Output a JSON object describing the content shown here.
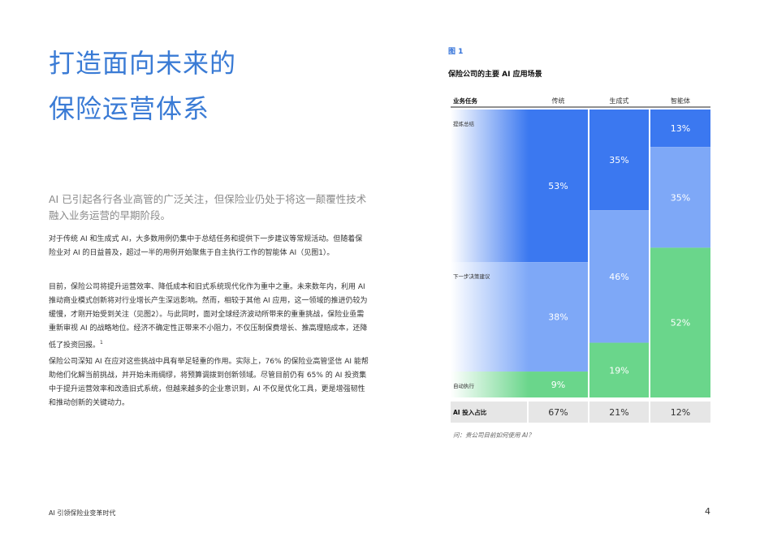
{
  "page": {
    "title_line1": "打造面向未来的",
    "title_line2": "保险运营体系",
    "lead": "AI 已引起各行各业高管的广泛关注，但保险业仍处于将这一颠覆性技术融入业务运营的早期阶段。",
    "para1": "对于传统 AI 和生成式 AI，大多数用例仍集中于总结任务和提供下一步建议等常规活动。但随着保险业对 AI 的日益普及，超过一半的用例开始聚焦于自主执行工作的智能体 AI（见图1）。",
    "para2": "目前，保险公司将提升运营效率、降低成本和旧式系统现代化作为重中之重。未来数年内，利用 AI 推动商业模式创新将对行业增长产生深远影响。然而，相较于其他 AI 应用，这一领域的推进仍较为缓慢，才刚开始受到关注（见图2）。与此同时，面对全球经济波动所带来的重重挑战，保险业亟需重新审视 AI 的战略地位。经济不确定性正带来不小阻力，不仅压制保费增长、推高理赔成本，还降低了投资回报。",
    "para2_sup": "1",
    "para3": "保险公司深知 AI 在应对这些挑战中具有举足轻重的作用。实际上，76% 的保险业高管坚信 AI 能帮助他们化解当前挑战，并开始未雨绸缪，将预算调拨到创新领域。尽管目前仍有 65% 的 AI 投资集中于提升运营效率和改造旧式系统，但越来越多的企业意识到，AI 不仅是优化工具，更是增强韧性和推动创新的关键动力。",
    "footer_left": "AI 引领保险业变革时代",
    "footer_page": "4"
  },
  "figure": {
    "label": "图 1",
    "title": "保险公司的主要 AI 应用场景",
    "note": "问：贵公司目前如何使用 AI？"
  },
  "chart_data": {
    "type": "bar",
    "subtype": "100% stacked (mekko-style)",
    "row_header": "业务任务",
    "categories": [
      "传统",
      "生成式",
      "智能体"
    ],
    "tasks": [
      "提炼总结",
      "下一步决策建议",
      "自动执行"
    ],
    "series": [
      {
        "name": "提炼总结",
        "values": [
          53,
          35,
          13
        ],
        "labels": [
          "53%",
          "35%",
          "13%"
        ]
      },
      {
        "name": "下一步决策建议",
        "values": [
          38,
          46,
          35
        ],
        "labels": [
          "38%",
          "46%",
          "35%"
        ]
      },
      {
        "name": "自动执行",
        "values": [
          9,
          19,
          52
        ],
        "labels": [
          "9%",
          "19%",
          "52%"
        ]
      }
    ],
    "investment_label": "AI 投入占比",
    "investment": [
      67,
      21,
      12
    ],
    "investment_labels": [
      "67%",
      "21%",
      "12%"
    ],
    "colors": {
      "summary": "#3b78f0",
      "decision": "#7ea8f7",
      "auto": "#6ad68b",
      "total_bg": "#e6e6e6"
    }
  }
}
